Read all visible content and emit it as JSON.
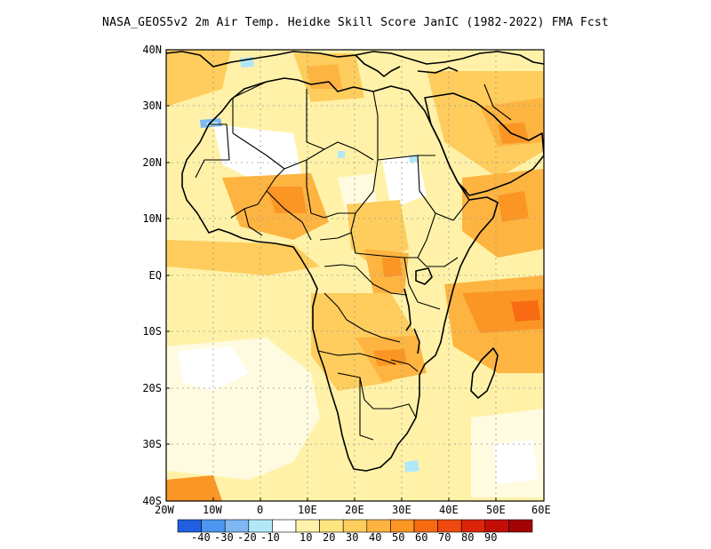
{
  "title": "NASA_GEOS5v2  2m Air Temp. Heidke Skill Score JanIC (1982-2022) FMA Fcst",
  "map": {
    "lon_labels": [
      "20W",
      "10W",
      "0",
      "10E",
      "20E",
      "30E",
      "40E",
      "50E",
      "60E"
    ],
    "lat_labels": [
      "40N",
      "30N",
      "20N",
      "10N",
      "EQ",
      "10S",
      "20S",
      "30S",
      "40S"
    ]
  },
  "colorbar": {
    "colors": [
      "#2060e0",
      "#4c96ef",
      "#7fb7f5",
      "#b1e8f8",
      "#ffffff",
      "#fff2a8",
      "#ffe57f",
      "#fecd5d",
      "#fdb441",
      "#fb9625",
      "#f86b13",
      "#ef4a0f",
      "#dc2409",
      "#c30e08",
      "#a20404"
    ],
    "labels": [
      "-40",
      "-30",
      "-20",
      "-10",
      "10",
      "20",
      "30",
      "40",
      "50",
      "60",
      "70",
      "80",
      "90"
    ]
  }
}
